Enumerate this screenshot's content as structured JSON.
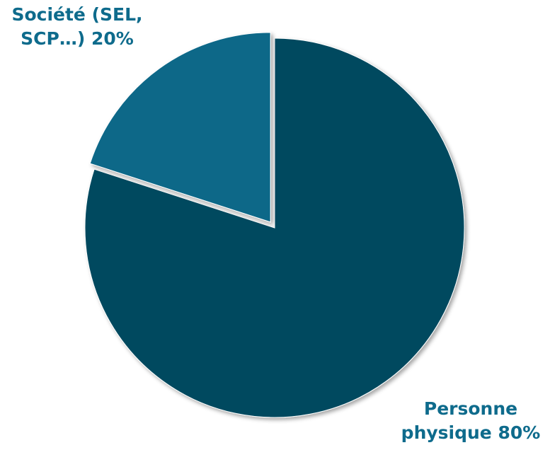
{
  "chart_data": {
    "type": "pie",
    "title": "",
    "slices": [
      {
        "label_lines": [
          "Personne",
          "physique 80%"
        ],
        "name": "Personne physique",
        "value": 80,
        "color": "#02485e",
        "exploded": false
      },
      {
        "label_lines": [
          "Société (SEL,",
          "SCP…) 20%"
        ],
        "name": "Société (SEL, SCP…)",
        "value": 20,
        "color": "#0c6788",
        "exploded": true
      }
    ],
    "start_angle": "12 o'clock",
    "direction": "clockwise",
    "label_color": "#0e6b8c",
    "legend": "none"
  }
}
